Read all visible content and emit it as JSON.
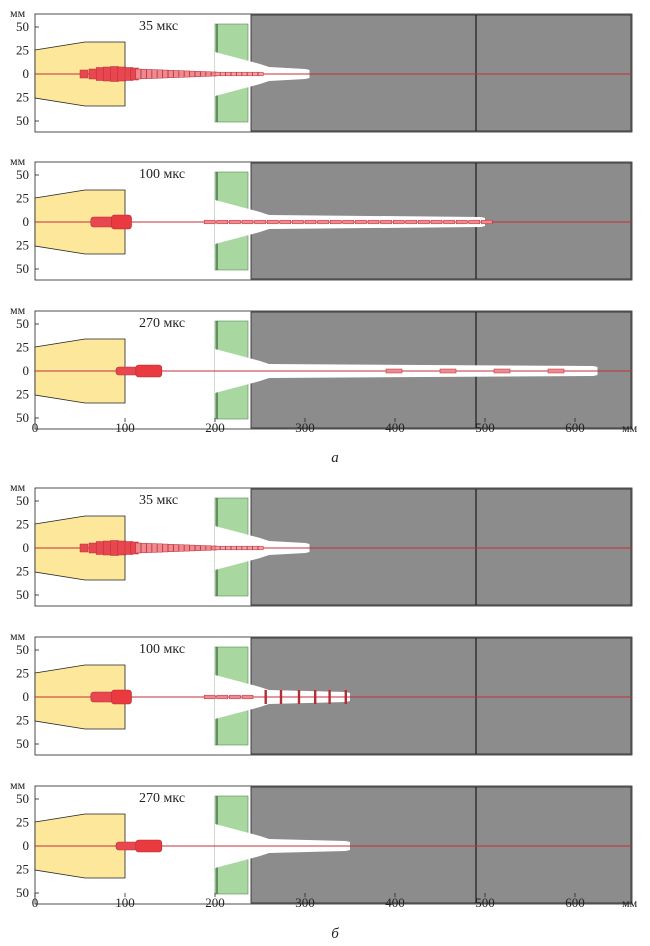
{
  "figure": {
    "groups": [
      {
        "id": "a",
        "label": "а",
        "panels": [
          {
            "time_label": "35 мкс",
            "channel_end_mm": 305,
            "jet": "dense",
            "fragments_mm": []
          },
          {
            "time_label": "100 мкс",
            "channel_end_mm": 500,
            "jet": "sparse",
            "fragments_mm": []
          },
          {
            "time_label": "270 мкс",
            "channel_end_mm": 625,
            "jet": "none",
            "fragments_mm": [
              390,
              450,
              510,
              570
            ]
          }
        ]
      },
      {
        "id": "b",
        "label": "б",
        "panels": [
          {
            "time_label": "35 мкс",
            "channel_end_mm": 305,
            "jet": "dense",
            "fragments_mm": []
          },
          {
            "time_label": "100 мкс",
            "channel_end_mm": 350,
            "jet": "short",
            "fragments_mm": []
          },
          {
            "time_label": "270 мкс",
            "channel_end_mm": 350,
            "jet": "none",
            "fragments_mm": []
          }
        ]
      }
    ],
    "y_unit": "мм",
    "x_unit": "мм",
    "y_tick_labels": [
      "50",
      "25",
      "0",
      "25",
      "50"
    ],
    "x_tick_labels": [
      "0",
      "100",
      "200",
      "300",
      "400",
      "500",
      "600"
    ],
    "x_ticks_mm": [
      0,
      100,
      200,
      300,
      400,
      500,
      600
    ],
    "x_range_mm": [
      0,
      650
    ],
    "colors": {
      "charge": "#fce79a",
      "spacer": "#a8d8a0",
      "target": "#8c8c8c",
      "jet": "#e8474f",
      "axis": "#c0303a",
      "outline": "#222222"
    }
  }
}
